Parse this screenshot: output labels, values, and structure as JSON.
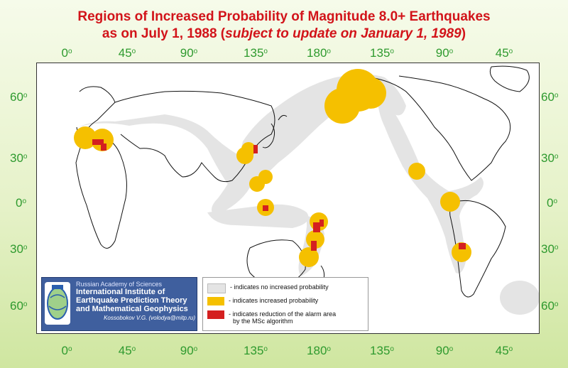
{
  "title": {
    "line1": "Regions of Increased Probability of Magnitude 8.0+ Earthquakes",
    "line2_prefix": "as on July 1, 1988 (",
    "line2_italic": "subject to update on January 1, 1989",
    "line2_suffix": ")"
  },
  "longitude_labels": [
    "0",
    "45",
    "90",
    "135",
    "180",
    "135",
    "90",
    "45"
  ],
  "latitude_labels": [
    "60",
    "30",
    "0",
    "30",
    "60"
  ],
  "degree_mark": "o",
  "institute": {
    "academy": "Russian Academy of Sciences",
    "name_line1": "International Institute of",
    "name_line2": "Earthquake Prediction Theory",
    "name_line3": "and Mathematical Geophysics",
    "credit": "Kossobokov V.G. (volodya@mitp.ru)"
  },
  "legend": {
    "items": [
      {
        "label": "- indicates no increased probability",
        "color": "#e4e4e4"
      },
      {
        "label": "- indicates increased probability",
        "color": "#f5c000"
      },
      {
        "label": "- indicates reduction of the alarm area",
        "label2": "by the MSc algorithm",
        "color": "#d42020"
      }
    ]
  },
  "colors": {
    "title": "#d2141a",
    "axis_labels": "#2e9a2e",
    "no_increase": "#e4e4e4",
    "increased": "#f5c000",
    "reduction": "#d42020"
  }
}
